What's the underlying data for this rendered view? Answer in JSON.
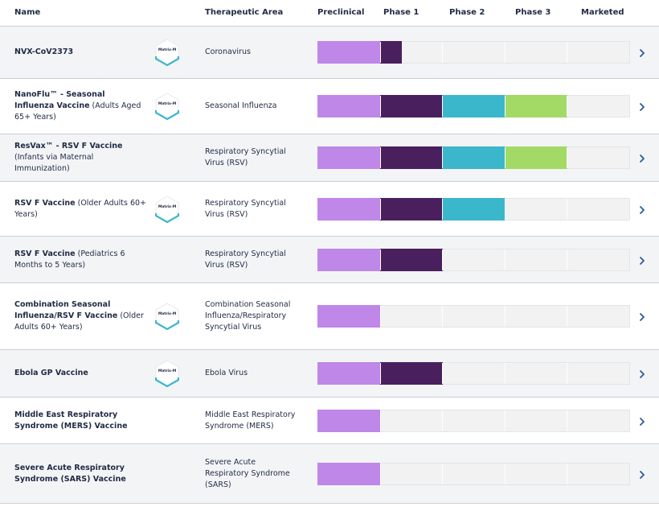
{
  "colors": {
    "preclinical": "#bf87e8",
    "phase1": "#4a1f5e",
    "phase2": "#3bb7cb",
    "phase3": "#a2da65",
    "marketed": "#1f2a44",
    "chevron": "#2a5b9c"
  },
  "header": {
    "name": "Name",
    "therapeutic_area": "Therapeutic Area",
    "preclinical": "Preclinical",
    "phase1": "Phase 1",
    "phase2": "Phase 2",
    "phase3": "Phase 3",
    "marketed": "Marketed"
  },
  "badge_label": "Matrix-M",
  "rows": [
    {
      "name_bold": "NVX-CoV2373",
      "name_rest": "",
      "badge": true,
      "area": "Coronavirus",
      "progress_stages": 1.35
    },
    {
      "name_bold": "NanoFlu™ - Seasonal Influenza Vaccine",
      "name_rest": " (Adults Aged 65+ Years)",
      "badge": true,
      "area": "Seasonal Influenza",
      "progress_stages": 4
    },
    {
      "name_bold": "ResVax™ - RSV F Vaccine",
      "name_rest": " (Infants via Maternal Immunization)",
      "badge": false,
      "area": "Respiratory Syncytial Virus (RSV)",
      "progress_stages": 4
    },
    {
      "name_bold": "RSV F Vaccine",
      "name_rest": " (Older Adults 60+ Years)",
      "badge": true,
      "area": "Respiratory Syncytial Virus (RSV)",
      "progress_stages": 3
    },
    {
      "name_bold": "RSV F Vaccine",
      "name_rest": " (Pediatrics 6 Months to 5 Years)",
      "badge": false,
      "area": "Respiratory Syncytial Virus (RSV)",
      "progress_stages": 2
    },
    {
      "name_bold": "Combination Seasonal Influenza/RSV F Vaccine",
      "name_rest": " (Older Adults 60+ Years)",
      "badge": true,
      "area": "Combination Seasonal Influenza/Respiratory Syncytial Virus",
      "progress_stages": 1
    },
    {
      "name_bold": "Ebola GP Vaccine",
      "name_rest": "",
      "badge": true,
      "area": "Ebola Virus",
      "progress_stages": 2
    },
    {
      "name_bold": "Middle East Respiratory Syndrome (MERS) Vaccine",
      "name_rest": "",
      "badge": false,
      "area": "Middle East Respiratory Syndrome (MERS)",
      "progress_stages": 1
    },
    {
      "name_bold": "Severe Acute Respiratory Syndrome (SARS) Vaccine",
      "name_rest": "",
      "badge": false,
      "area": "Severe Acute Respiratory Syndrome (SARS)",
      "progress_stages": 1
    }
  ]
}
